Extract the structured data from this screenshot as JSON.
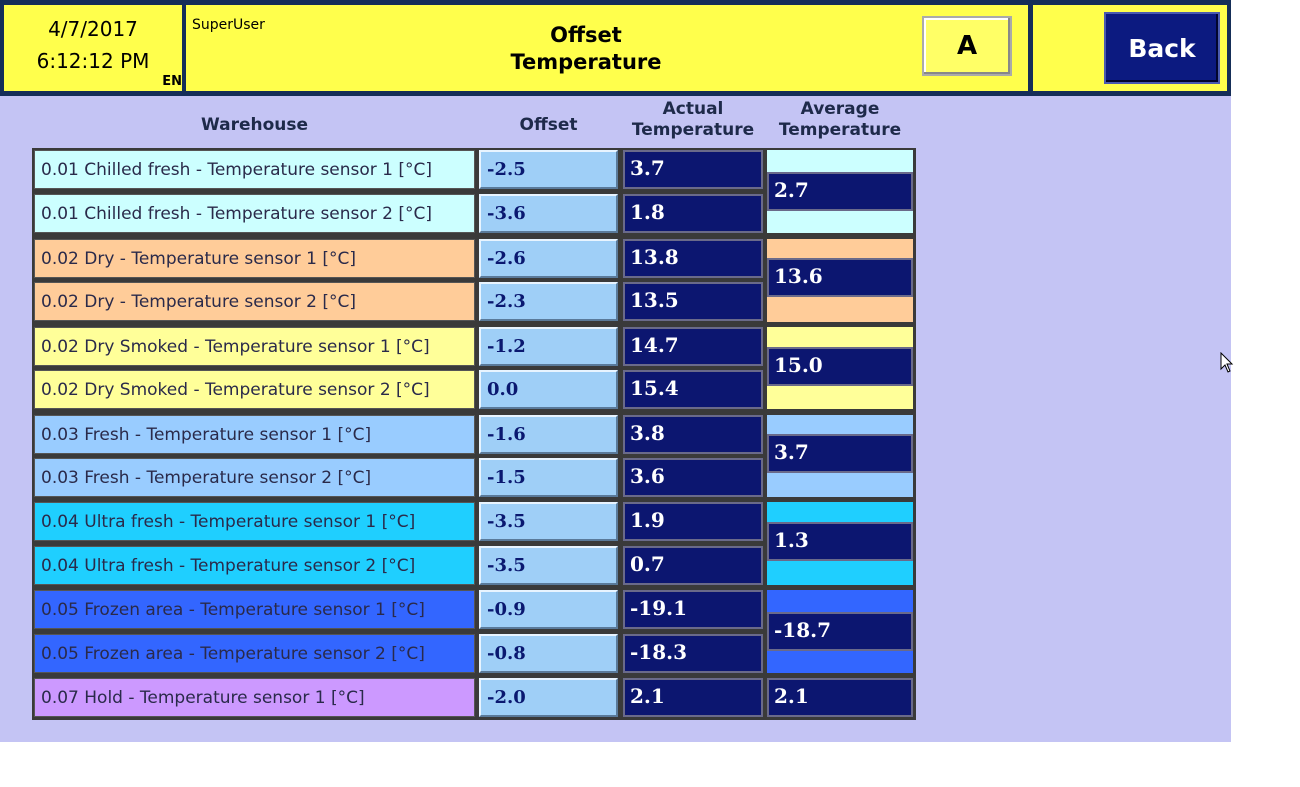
{
  "header": {
    "date": "4/7/2017",
    "time": "6:12:12 PM",
    "language": "EN",
    "user": "SuperUser",
    "title_line1": "Offset",
    "title_line2": "Temperature",
    "mode_label": "A",
    "back_label": "Back"
  },
  "columns": {
    "warehouse": "Warehouse",
    "offset": "Offset",
    "actual_line1": "Actual",
    "actual_line2": "Temperature",
    "average_line1": "Average",
    "average_line2": "Temperature"
  },
  "rows": [
    {
      "label": "0.01 Chilled fresh -  Temperature sensor 1 [°C]",
      "offset": "-2.5",
      "actual": "3.7"
    },
    {
      "label": "0.01 Chilled fresh -  Temperature sensor 2 [°C]",
      "offset": "-3.6",
      "actual": "1.8"
    },
    {
      "label": "0.02 Dry -  Temperature sensor 1 [°C]",
      "offset": "-2.6",
      "actual": "13.8"
    },
    {
      "label": "0.02 Dry -  Temperature sensor 2 [°C]",
      "offset": "-2.3",
      "actual": "13.5"
    },
    {
      "label": "0.02 Dry Smoked -  Temperature sensor 1 [°C]",
      "offset": "-1.2",
      "actual": "14.7"
    },
    {
      "label": "0.02 Dry Smoked -  Temperature sensor 2 [°C]",
      "offset": "0.0",
      "actual": "15.4"
    },
    {
      "label": "0.03 Fresh -  Temperature sensor 1 [°C]",
      "offset": "-1.6",
      "actual": "3.8"
    },
    {
      "label": "0.03 Fresh -  Temperature sensor 2 [°C]",
      "offset": "-1.5",
      "actual": "3.6"
    },
    {
      "label": "0.04 Ultra fresh -  Temperature sensor 1 [°C]",
      "offset": "-3.5",
      "actual": "1.9"
    },
    {
      "label": "0.04 Ultra fresh -  Temperature sensor 2 [°C]",
      "offset": "-3.5",
      "actual": "0.7"
    },
    {
      "label": "0.05 Frozen area -  Temperature sensor 1 [°C]",
      "offset": "-0.9",
      "actual": "-19.1"
    },
    {
      "label": "0.05 Frozen area -  Temperature sensor 2 [°C]",
      "offset": "-0.8",
      "actual": "-18.3"
    },
    {
      "label": "0.07 Hold -  Temperature sensor 1 [°C]",
      "offset": "-2.0",
      "actual": "2.1"
    }
  ],
  "averages": [
    {
      "group": "0.01 Chilled fresh",
      "value": "2.7",
      "color": "#ccffff"
    },
    {
      "group": "0.02 Dry",
      "value": "13.6",
      "color": "#ffcc99"
    },
    {
      "group": "0.02 Dry Smoked",
      "value": "15.0",
      "color": "#ffff99"
    },
    {
      "group": "0.03 Fresh",
      "value": "3.7",
      "color": "#99ccff"
    },
    {
      "group": "0.04 Ultra fresh",
      "value": "1.3",
      "color": "#1fcfff"
    },
    {
      "group": "0.05 Frozen area",
      "value": "-18.7",
      "color": "#3366ff"
    },
    {
      "group": "0.07 Hold",
      "value": "2.1",
      "color": "#cc99ff"
    }
  ],
  "colors": {
    "header_yellow": "#ffff4c",
    "background": "#c4c4f4",
    "value_navy": "#0c1670",
    "offset_blue": "#9fcff7"
  }
}
